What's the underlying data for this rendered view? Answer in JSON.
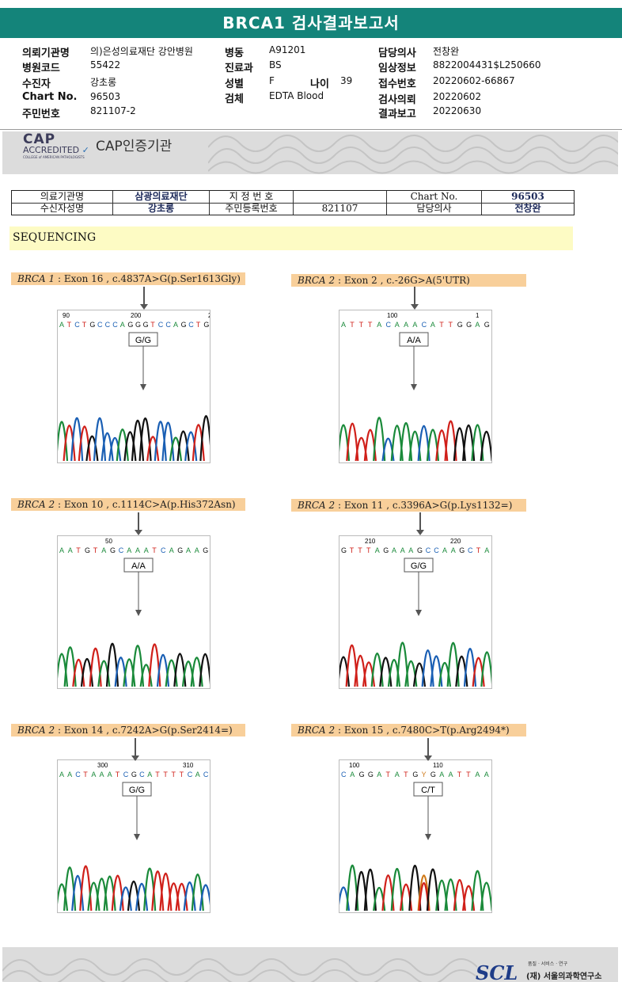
{
  "title": "BRCA1 검사결과보고서",
  "report": {
    "col1": [
      {
        "label": "의뢰기관명",
        "value": "의)은성의료재단 강안병원"
      },
      {
        "label": "병원코드",
        "value": "55422"
      },
      {
        "label": "수진자",
        "value": "강초롱"
      },
      {
        "label": "Chart No.",
        "value": "96503"
      },
      {
        "label": "주민번호",
        "value": "821107-2"
      }
    ],
    "col2": [
      {
        "label": "병동",
        "value": "A91201"
      },
      {
        "label": "진료과",
        "value": "BS"
      },
      {
        "label": "성별",
        "value": "F"
      },
      {
        "label": "검체",
        "value": "EDTA Blood"
      }
    ],
    "age": {
      "label": "나이",
      "value": "39"
    },
    "col3": [
      {
        "label": "담당의사",
        "value": "전창완"
      },
      {
        "label": "임상정보",
        "value": "8822004431$L250660"
      },
      {
        "label": "접수번호",
        "value": "20220602-66867"
      },
      {
        "label": "검사의뢰",
        "value": "20220602"
      },
      {
        "label": "결과보고",
        "value": "20220630"
      }
    ]
  },
  "cap": {
    "logo_big": "CAP",
    "logo_accredited": "ACCREDITED",
    "logo_college": "COLLEGE of AMERICAN PATHOLOGISTS",
    "text": "CAP인증기관"
  },
  "table": {
    "r1": [
      "의료기관명",
      "삼광의료재단",
      "지 정 번 호",
      "",
      "Chart No.",
      "96503"
    ],
    "r2": [
      "수신자성명",
      "강초롱",
      "주민등록번호",
      "821107",
      "담당의사",
      "전창완"
    ]
  },
  "section": "SEQUENCING",
  "panels": [
    {
      "gene": "BRCA 1",
      "desc": ": Exon 16 , c.4837A>G(p.Ser1613Gly)",
      "geno": "G/G",
      "pos": [
        "90",
        "200",
        "2"
      ],
      "seq": "ATCTGCCCAGGGTCCAGCTG"
    },
    {
      "gene": "BRCA 2",
      "desc": ": Exon 2 , c.-26G>A(5'UTR)",
      "geno": "A/A",
      "pos": [
        "100",
        "1"
      ],
      "seq": "ATTTACAAACATTGGAG"
    },
    {
      "gene": "BRCA 2",
      "desc": ": Exon 10 , c.1114C>A(p.His372Asn)",
      "geno": "A/A",
      "pos": [
        "50"
      ],
      "seq": "AATGTAGCAAATCAGAAG"
    },
    {
      "gene": "BRCA 2",
      "desc": ": Exon 11 , c.3396A>G(p.Lys1132=)",
      "geno": "G/G",
      "pos": [
        "210",
        "220"
      ],
      "seq": "GTTTAGAAAGCCAAGCTA"
    },
    {
      "gene": "BRCA 2",
      "desc": ": Exon 14 , c.7242A>G(p.Ser2414=)",
      "geno": "G/G",
      "pos": [
        "300",
        "310"
      ],
      "seq": "AACTAAATCGCATTTTCAC"
    },
    {
      "gene": "BRCA 2",
      "desc": ": Exon 15 , c.7480C>T(p.Arg2494*)",
      "geno": "C/T",
      "pos": [
        "100",
        "110"
      ],
      "seq": "CAGGATATGYGAATTAA"
    }
  ],
  "footer": {
    "scl": "SCL",
    "small": "품질 · 서비스 · 연구",
    "big": "(재) 서울의과학연구소"
  },
  "colors": {
    "A": "#1a8a3a",
    "C": "#1a5fb4",
    "G": "#111111",
    "T": "#d0201a",
    "Y": "#d07a1a",
    "title_bg": "#14847a"
  }
}
